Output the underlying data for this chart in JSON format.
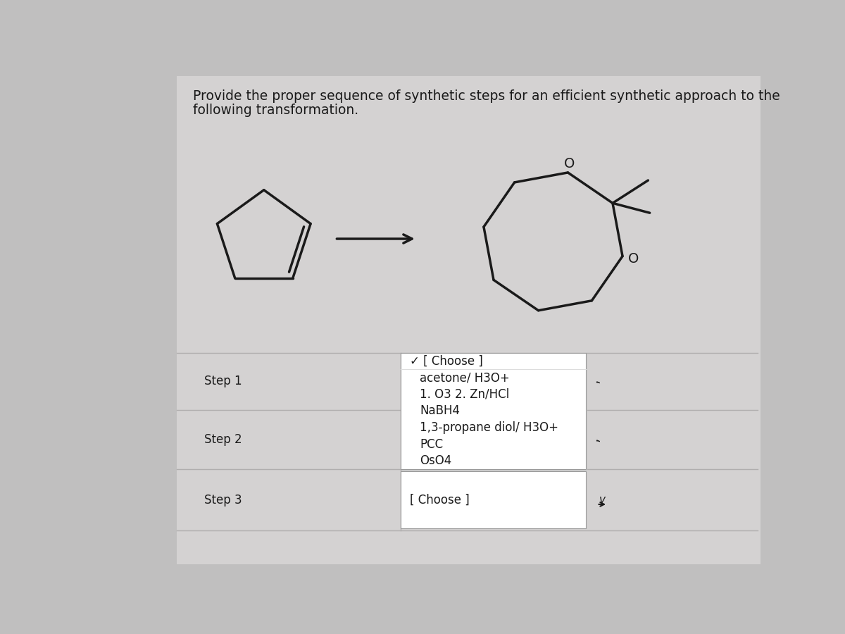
{
  "title_line1": "Provide the proper sequence of synthetic steps for an efficient synthetic approach to the",
  "title_line2": "following transformation.",
  "bg_color": "#c0bfbf",
  "panel_color": "#d4d2d2",
  "white": "#ffffff",
  "line_color": "#1a1a1a",
  "text_color": "#1a1a1a",
  "divider_color": "#b0aeae",
  "step_labels": [
    "Step 1",
    "Step 2",
    "Step 3"
  ],
  "dropdown_selected": "✓ [ Choose ]",
  "dropdown_options": [
    "acetone/ H3O+",
    "1. O3 2. Zn/HCl",
    "NaBH4",
    "1,3-propane diol/ H3O+",
    "PCC",
    "OsO4"
  ],
  "dropdown3_text": "[ Choose ]",
  "font_size_title": 13.5,
  "font_size_steps": 12,
  "font_size_dropdown": 12,
  "font_size_o_label": 14
}
